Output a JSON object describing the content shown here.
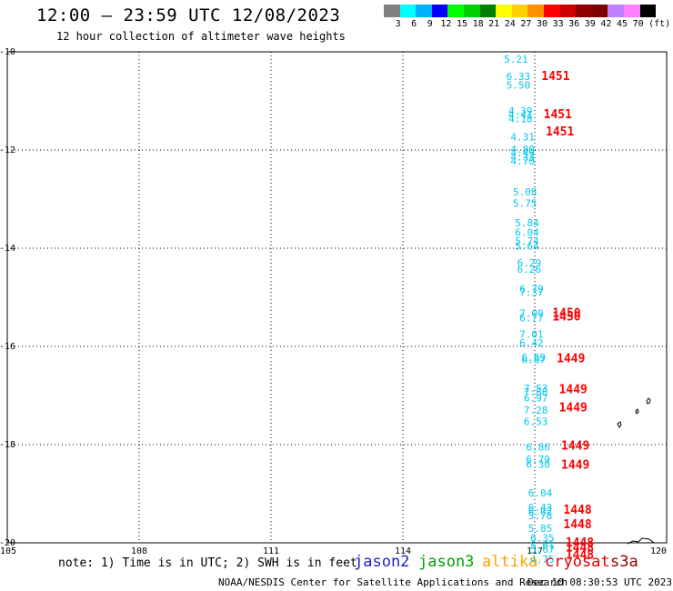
{
  "header": {
    "title": "12:00 — 23:59 UTC 12/08/2023",
    "subtitle": "12 hour collection of altimeter wave heights"
  },
  "colorbar": {
    "labels": [
      "3",
      "6",
      "9",
      "12",
      "15",
      "18",
      "21",
      "24",
      "27",
      "30",
      "33",
      "36",
      "39",
      "42",
      "45",
      "70",
      "(ft)"
    ],
    "colors": [
      "#808080",
      "#00ffff",
      "#00b0ff",
      "#0000ff",
      "#00ff00",
      "#00d000",
      "#008000",
      "#ffff00",
      "#ffd000",
      "#ff9000",
      "#ff0000",
      "#d00000",
      "#900000",
      "#800000",
      "#c080ff",
      "#ff80ff",
      "#000000"
    ]
  },
  "map": {
    "lon_range": [
      105,
      120
    ],
    "lat_range": [
      -20,
      -10
    ],
    "lon_ticks": [
      "105",
      "108",
      "111",
      "114",
      "117",
      "120"
    ],
    "lat_ticks": [
      "-10",
      "-12",
      "-14",
      "-16",
      "-18",
      "-20"
    ],
    "grid": "dotted",
    "swh_color": "#00c8f0",
    "time_color": "#ff0000",
    "swh_labels": [
      {
        "text": "5.21",
        "lon": 116.3,
        "lat": -10.15
      },
      {
        "text": "6.33",
        "lon": 116.35,
        "lat": -10.5
      },
      {
        "text": "5.50",
        "lon": 116.35,
        "lat": -10.68
      },
      {
        "text": "4.39",
        "lon": 116.4,
        "lat": -11.2
      },
      {
        "text": "4.41",
        "lon": 116.4,
        "lat": -11.28
      },
      {
        "text": "4.18",
        "lon": 116.4,
        "lat": -11.36
      },
      {
        "text": "4.31",
        "lon": 116.45,
        "lat": -11.73
      },
      {
        "text": "4.80",
        "lon": 116.45,
        "lat": -11.98
      },
      {
        "text": "4.49",
        "lon": 116.45,
        "lat": -12.06
      },
      {
        "text": "4.33",
        "lon": 116.45,
        "lat": -12.14
      },
      {
        "text": "4.70",
        "lon": 116.45,
        "lat": -12.22
      },
      {
        "text": "5.08",
        "lon": 116.5,
        "lat": -12.85
      },
      {
        "text": "5.75",
        "lon": 116.5,
        "lat": -13.08
      },
      {
        "text": "5.84",
        "lon": 116.55,
        "lat": -13.48
      },
      {
        "text": "6.04",
        "lon": 116.55,
        "lat": -13.68
      },
      {
        "text": "5.74",
        "lon": 116.55,
        "lat": -13.85
      },
      {
        "text": "5.64",
        "lon": 116.55,
        "lat": -13.95
      },
      {
        "text": "6.29",
        "lon": 116.6,
        "lat": -14.3
      },
      {
        "text": "6.26",
        "lon": 116.6,
        "lat": -14.43
      },
      {
        "text": "6.79",
        "lon": 116.65,
        "lat": -14.82
      },
      {
        "text": "7.37",
        "lon": 116.65,
        "lat": -14.9
      },
      {
        "text": "7.09",
        "lon": 116.65,
        "lat": -15.32
      },
      {
        "text": "6.77",
        "lon": 116.65,
        "lat": -15.42
      },
      {
        "text": "7.01",
        "lon": 116.65,
        "lat": -15.75
      },
      {
        "text": "6.42",
        "lon": 116.65,
        "lat": -15.93
      },
      {
        "text": "6.89",
        "lon": 116.7,
        "lat": -16.22
      },
      {
        "text": "6.87",
        "lon": 116.7,
        "lat": -16.27
      },
      {
        "text": "7.53",
        "lon": 116.75,
        "lat": -16.85
      },
      {
        "text": "7.80",
        "lon": 116.75,
        "lat": -16.93
      },
      {
        "text": "6.97",
        "lon": 116.75,
        "lat": -17.05
      },
      {
        "text": "7.28",
        "lon": 116.75,
        "lat": -17.3
      },
      {
        "text": "6.53",
        "lon": 116.75,
        "lat": -17.53
      },
      {
        "text": "6.86",
        "lon": 116.8,
        "lat": -18.05
      },
      {
        "text": "6.79",
        "lon": 116.8,
        "lat": -18.3
      },
      {
        "text": "6.30",
        "lon": 116.8,
        "lat": -18.4
      },
      {
        "text": "6.04",
        "lon": 116.85,
        "lat": -18.98
      },
      {
        "text": "6.43",
        "lon": 116.85,
        "lat": -19.28
      },
      {
        "text": "6.02",
        "lon": 116.85,
        "lat": -19.36
      },
      {
        "text": "5.78",
        "lon": 116.85,
        "lat": -19.44
      },
      {
        "text": "5.85",
        "lon": 116.85,
        "lat": -19.7
      },
      {
        "text": "6.35",
        "lon": 116.9,
        "lat": -19.9
      },
      {
        "text": "5.61",
        "lon": 116.9,
        "lat": -20.05
      },
      {
        "text": "5.67",
        "lon": 116.9,
        "lat": -20.13
      },
      {
        "text": "4.75",
        "lon": 116.9,
        "lat": -20.33
      }
    ],
    "time_labels": [
      {
        "text": "1451",
        "lon": 117.15,
        "lat": -10.5
      },
      {
        "text": "1451",
        "lon": 117.2,
        "lat": -11.28
      },
      {
        "text": "1451",
        "lon": 117.25,
        "lat": -11.63
      },
      {
        "text": "1450",
        "lon": 117.4,
        "lat": -15.32
      },
      {
        "text": "1450",
        "lon": 117.4,
        "lat": -15.4
      },
      {
        "text": "1449",
        "lon": 117.5,
        "lat": -16.25
      },
      {
        "text": "1449",
        "lon": 117.55,
        "lat": -16.88
      },
      {
        "text": "1449",
        "lon": 117.55,
        "lat": -17.25
      },
      {
        "text": "1449",
        "lon": 117.6,
        "lat": -18.03
      },
      {
        "text": "1449",
        "lon": 117.6,
        "lat": -18.42
      },
      {
        "text": "1448",
        "lon": 117.65,
        "lat": -19.33
      },
      {
        "text": "1448",
        "lon": 117.65,
        "lat": -19.63
      },
      {
        "text": "1448",
        "lon": 117.7,
        "lat": -20.0
      },
      {
        "text": "1448",
        "lon": 117.7,
        "lat": -20.1
      },
      {
        "text": "1448",
        "lon": 117.7,
        "lat": -20.25
      }
    ]
  },
  "footer": {
    "note": "note: 1) Time is in UTC; 2) SWH is in feet",
    "missions": [
      {
        "name": "jason2",
        "color": "#1e1ec8"
      },
      {
        "name": "jason3",
        "color": "#00a000"
      },
      {
        "name": "altika",
        "color": "#ffa000"
      },
      {
        "name": "cryosat",
        "color": "#e00000"
      },
      {
        "name": "s3a",
        "color": "#900000"
      }
    ],
    "credit": "NOAA/NESDIS Center for Satellite Applications and Research",
    "generated": "Dec 10 08:30:53 UTC 2023"
  }
}
